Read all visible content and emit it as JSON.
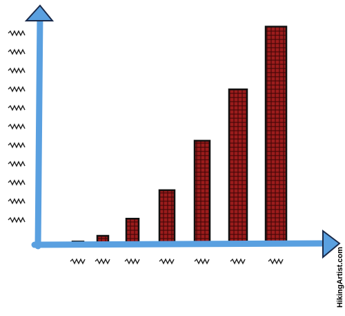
{
  "chart_data": {
    "type": "bar",
    "categories": [
      null,
      null,
      null,
      null,
      null,
      null,
      null
    ],
    "values": [
      0.1,
      0.4,
      1.3,
      2.8,
      5.4,
      8.1,
      11.4
    ],
    "color": "#8b1a1a",
    "ylim": [
      0,
      12
    ],
    "source": "HikingArtist.com"
  }
}
